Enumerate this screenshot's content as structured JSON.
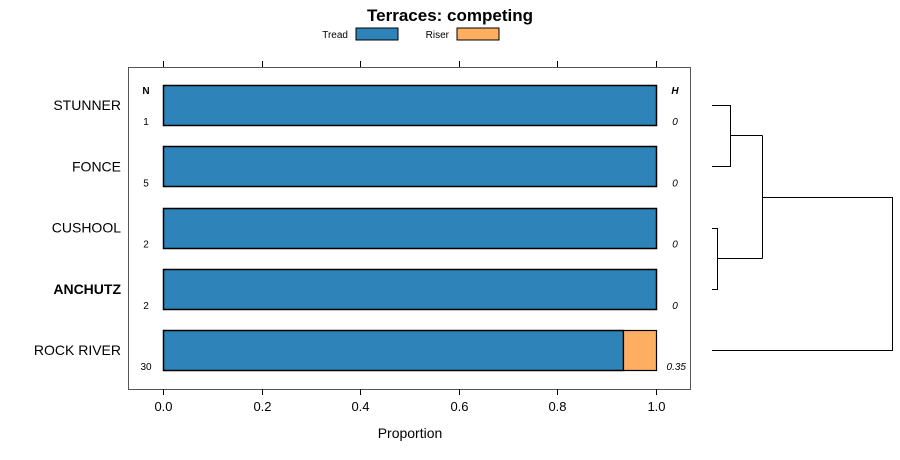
{
  "chart_data": {
    "type": "bar",
    "stacked": true,
    "orientation": "horizontal",
    "title": "Terraces: competing",
    "xlabel": "Proportion",
    "xlim": [
      0,
      1
    ],
    "xticks": [
      "0.0",
      "0.2",
      "0.4",
      "0.6",
      "0.8",
      "1.0"
    ],
    "legend": {
      "position": "top",
      "entries": [
        "Tread",
        "Riser"
      ]
    },
    "colors": {
      "Tread": "#2e83b8",
      "Riser": "#fdae61"
    },
    "left_header": "N",
    "right_header": "H",
    "categories": [
      "STUNNER",
      "FONCE",
      "CUSHOOL",
      "ANCHUTZ",
      "ROCK RIVER"
    ],
    "highlight": "ANCHUTZ",
    "n": [
      "1",
      "5",
      "2",
      "2",
      "30"
    ],
    "h": [
      "0",
      "0",
      "0",
      "0",
      "0.35"
    ],
    "series": [
      {
        "name": "Tread",
        "values": [
          1,
          1,
          1,
          1,
          0.933
        ]
      },
      {
        "name": "Riser",
        "values": [
          0,
          0,
          0,
          0,
          0.067
        ]
      }
    ]
  }
}
